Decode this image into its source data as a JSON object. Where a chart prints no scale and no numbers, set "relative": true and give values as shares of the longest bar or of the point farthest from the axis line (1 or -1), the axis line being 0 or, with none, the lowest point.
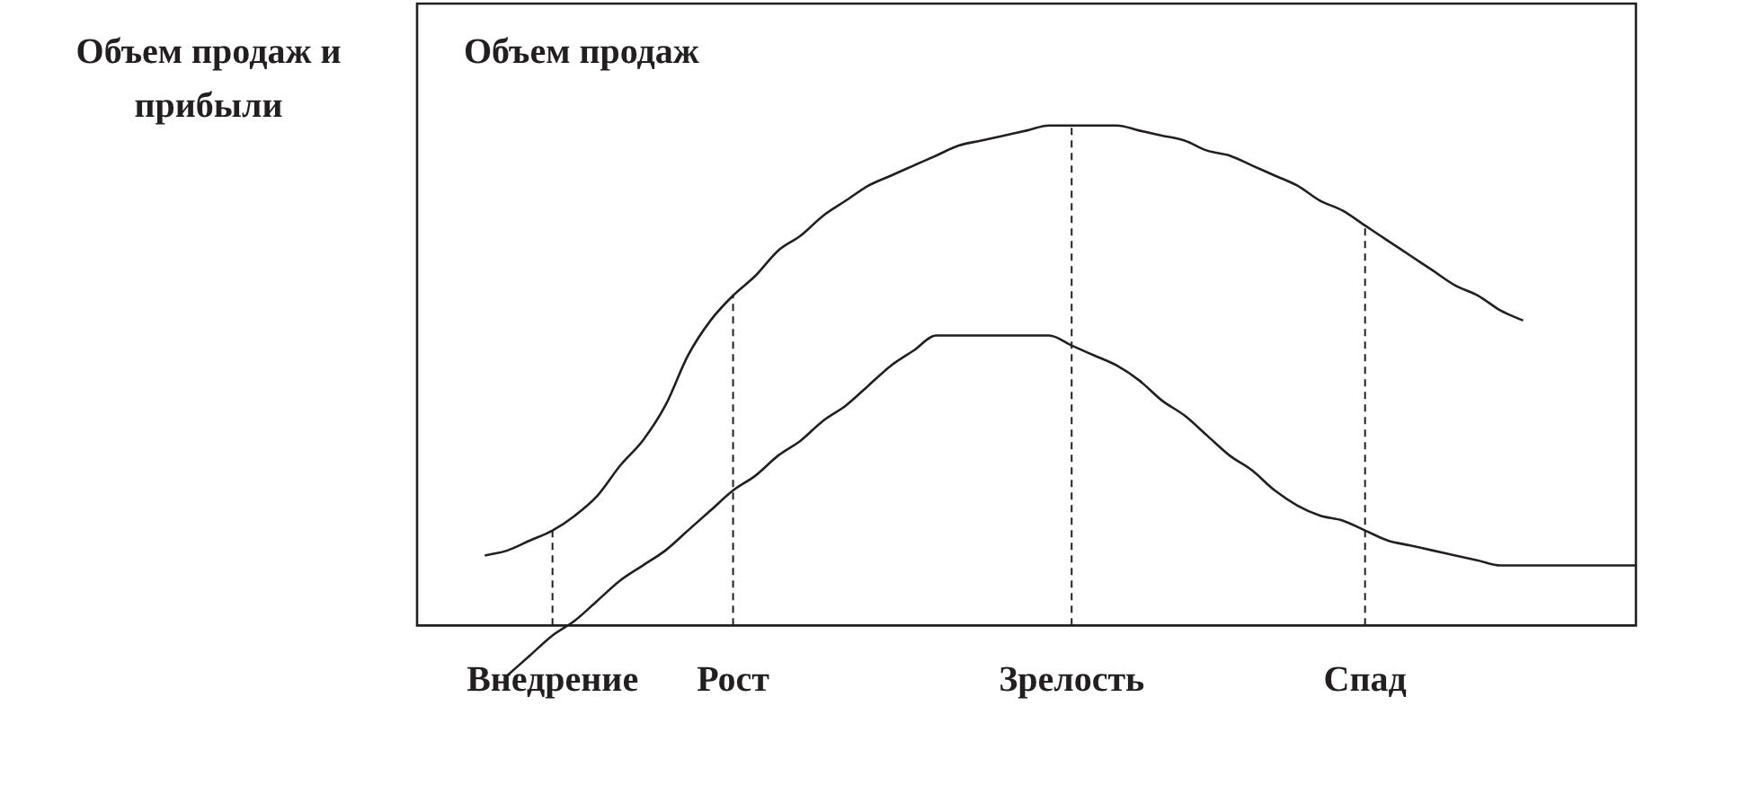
{
  "chart_data": {
    "type": "line",
    "relative": true,
    "ylabel": "Объем продаж и прибыли",
    "annotations": [
      "Объем продаж"
    ],
    "categories": [
      null,
      null,
      null,
      null,
      null,
      null,
      "Внедрение",
      null,
      null,
      null,
      null,
      null,
      null,
      null,
      "Рост",
      null,
      null,
      null,
      null,
      null,
      null,
      null,
      null,
      null,
      null,
      null,
      null,
      null,
      null,
      "Зрелость",
      null,
      null,
      null,
      null,
      null,
      null,
      null,
      null,
      null,
      null,
      null,
      null,
      "Спад",
      null,
      null,
      null,
      null,
      null,
      null,
      null,
      null,
      null,
      null,
      null,
      null
    ],
    "series": [
      {
        "color": "#231f20",
        "values": [
          null,
          null,
          null,
          0.14,
          0.15,
          0.17,
          0.19,
          0.22,
          0.26,
          0.32,
          0.37,
          0.44,
          0.54,
          0.61,
          0.66,
          0.7,
          0.75,
          0.78,
          0.82,
          0.85,
          0.88,
          0.9,
          0.92,
          0.94,
          0.96,
          0.97,
          0.98,
          0.99,
          1.0,
          1,
          1,
          1.0,
          0.99,
          0.98,
          0.97,
          0.95,
          0.94,
          0.92,
          0.9,
          0.88,
          0.85,
          0.83,
          0.8,
          0.77,
          0.74,
          0.71,
          0.68,
          0.66,
          0.63,
          0.61,
          null,
          null,
          null,
          null,
          null
        ]
      },
      {
        "color": "#231f20",
        "values": [
          null,
          null,
          null,
          null,
          -0.1,
          -0.06,
          -0.02,
          0.01,
          0.05,
          0.09,
          0.12,
          0.15,
          0.19,
          0.23,
          0.27,
          0.3,
          0.34,
          0.37,
          0.41,
          0.44,
          0.48,
          0.52,
          0.55,
          0.58,
          0.58,
          0.58,
          0.58,
          0.58,
          0.58,
          0.56,
          0.54,
          0.52,
          0.49,
          0.45,
          0.42,
          0.38,
          0.34,
          0.31,
          0.27,
          0.24,
          0.22,
          0.21,
          0.19,
          0.17,
          0.16,
          0.15,
          0.14,
          0.13,
          0.12,
          0.12,
          0.12,
          0.12,
          0.12,
          0.12,
          0.12
        ]
      }
    ],
    "ref_lines": [
      {
        "axis": "x",
        "value": "Внедрение",
        "line_style": "dashed"
      },
      {
        "axis": "x",
        "value": "Рост",
        "line_style": "dashed"
      },
      {
        "axis": "x",
        "value": "Зрелость",
        "line_style": "dashed"
      },
      {
        "axis": "x",
        "value": "Спад",
        "line_style": "dashed"
      }
    ],
    "marker": "none",
    "line_style": "solid"
  }
}
